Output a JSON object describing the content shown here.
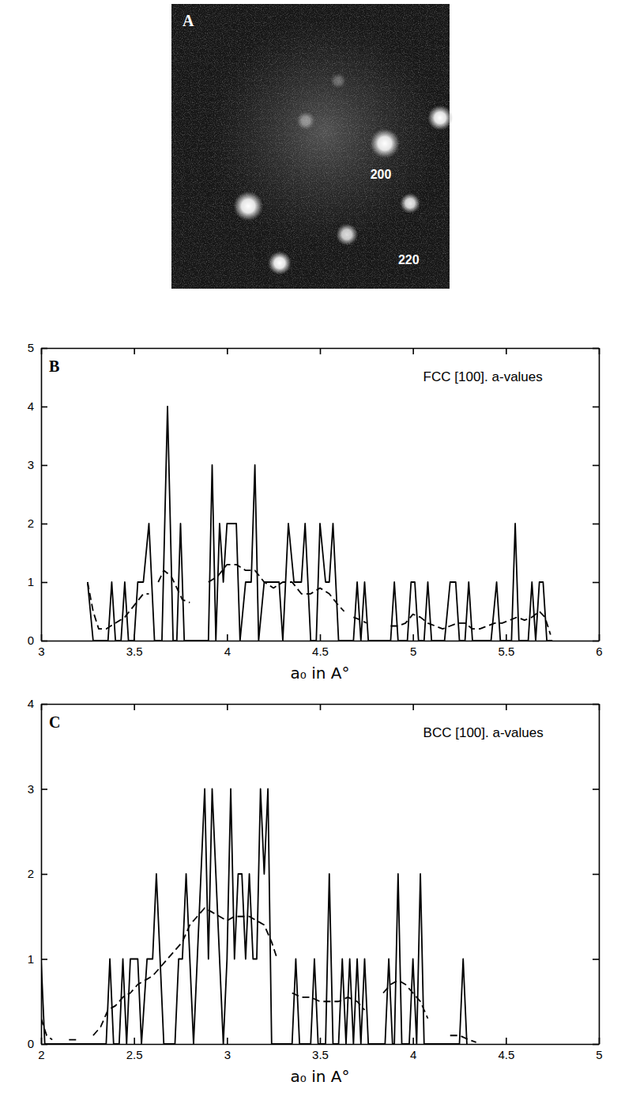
{
  "chart_data": [
    {
      "type": "image",
      "panel": "A",
      "annotations": [
        "200",
        "220"
      ]
    },
    {
      "type": "line",
      "panel": "B",
      "title": "FCC [100]. a-values",
      "x_label": "a₀ in A°",
      "xlim": [
        3,
        6
      ],
      "xticks": [
        3,
        3.5,
        4,
        4.5,
        5,
        5.5,
        6
      ],
      "ylim": [
        0,
        5
      ],
      "yticks": [
        0,
        1,
        2,
        3,
        4,
        5
      ],
      "series": [
        {
          "color": "#000000",
          "line_style": "solid",
          "x": [
            3.25,
            3.28,
            3.36,
            3.38,
            3.4,
            3.43,
            3.45,
            3.47,
            3.5,
            3.52,
            3.55,
            3.58,
            3.61,
            3.65,
            3.68,
            3.71,
            3.73,
            3.75,
            3.77,
            3.9,
            3.92,
            3.94,
            3.96,
            3.98,
            4.0,
            4.05,
            4.07,
            4.1,
            4.13,
            4.15,
            4.17,
            4.2,
            4.25,
            4.28,
            4.3,
            4.33,
            4.36,
            4.38,
            4.4,
            4.42,
            4.45,
            4.48,
            4.5,
            4.53,
            4.55,
            4.57,
            4.6,
            4.68,
            4.7,
            4.72,
            4.74,
            4.76,
            4.88,
            4.9,
            4.92,
            4.97,
            4.99,
            5.01,
            5.03,
            5.06,
            5.08,
            5.1,
            5.17,
            5.2,
            5.23,
            5.25,
            5.28,
            5.3,
            5.32,
            5.42,
            5.45,
            5.47,
            5.53,
            5.55,
            5.57,
            5.62,
            5.64,
            5.66,
            5.68,
            5.7,
            5.72,
            5.75
          ],
          "values": [
            1,
            0,
            0,
            1,
            0,
            0,
            1,
            0,
            0,
            1,
            1,
            2,
            0,
            0,
            4,
            0,
            0,
            2,
            0,
            0,
            3,
            0,
            2,
            1,
            2,
            2,
            0,
            1,
            1,
            3,
            0,
            1,
            1,
            1,
            0,
            2,
            1,
            1,
            1,
            2,
            0,
            0,
            2,
            1,
            1,
            2,
            0,
            0,
            1,
            0,
            1,
            0,
            0,
            1,
            0,
            0,
            1,
            1,
            0,
            0,
            1,
            0,
            0,
            1,
            1,
            0,
            0,
            1,
            0,
            0,
            1,
            0,
            0,
            2,
            0,
            0,
            1,
            0,
            1,
            1,
            0,
            0
          ]
        },
        {
          "color": "#000000",
          "line_style": "dashed",
          "x": [
            3.25,
            3.28,
            3.31,
            3.35,
            3.4,
            3.45,
            3.5,
            3.55,
            3.58,
            3.6,
            3.63,
            3.66,
            3.7,
            3.73,
            3.76,
            3.8,
            3.85,
            3.9,
            3.95,
            4.0,
            4.05,
            4.1,
            4.15,
            4.2,
            4.25,
            4.3,
            4.35,
            4.4,
            4.45,
            4.5,
            4.55,
            4.6,
            4.63,
            4.66,
            4.68,
            4.72,
            4.75,
            4.82,
            4.88,
            4.92,
            4.96,
            5.0,
            5.04,
            5.08,
            5.12,
            5.16,
            5.2,
            5.24,
            5.28,
            5.32,
            5.36,
            5.4,
            5.44,
            5.48,
            5.52,
            5.56,
            5.6,
            5.64,
            5.68,
            5.71,
            5.74
          ],
          "values": [
            1.0,
            0.5,
            0.2,
            0.2,
            0.3,
            0.4,
            0.6,
            0.8,
            0.8,
            null,
            1.0,
            1.2,
            1.1,
            0.9,
            0.7,
            0.65,
            null,
            1.0,
            1.1,
            1.3,
            1.3,
            1.2,
            1.2,
            1.0,
            0.9,
            1.0,
            1.0,
            0.8,
            0.8,
            0.9,
            0.8,
            0.6,
            0.5,
            null,
            0.4,
            0.35,
            0.3,
            null,
            0.25,
            0.25,
            0.3,
            0.45,
            0.4,
            0.3,
            0.25,
            0.2,
            0.25,
            0.3,
            0.3,
            0.2,
            0.2,
            0.25,
            0.3,
            0.3,
            0.35,
            0.4,
            0.35,
            0.4,
            0.5,
            0.4,
            0.1
          ]
        }
      ]
    },
    {
      "type": "line",
      "panel": "C",
      "title": "BCC [100]. a-values",
      "x_label": "a₀ in A°",
      "xlim": [
        2,
        5
      ],
      "xticks": [
        2,
        2.5,
        3,
        3.5,
        4,
        4.5,
        5
      ],
      "ylim": [
        0,
        4
      ],
      "yticks": [
        0,
        1,
        2,
        3,
        4
      ],
      "series": [
        {
          "color": "#000000",
          "line_style": "solid",
          "x": [
            2.0,
            2.02,
            2.35,
            2.37,
            2.39,
            2.42,
            2.44,
            2.46,
            2.48,
            2.52,
            2.54,
            2.57,
            2.6,
            2.62,
            2.64,
            2.66,
            2.72,
            2.74,
            2.76,
            2.78,
            2.8,
            2.82,
            2.84,
            2.86,
            2.88,
            2.9,
            2.92,
            2.94,
            2.96,
            2.98,
            3.0,
            3.02,
            3.04,
            3.06,
            3.08,
            3.1,
            3.12,
            3.14,
            3.16,
            3.18,
            3.2,
            3.22,
            3.24,
            3.35,
            3.37,
            3.39,
            3.45,
            3.47,
            3.49,
            3.53,
            3.55,
            3.57,
            3.6,
            3.62,
            3.64,
            3.66,
            3.68,
            3.7,
            3.72,
            3.74,
            3.76,
            3.85,
            3.87,
            3.89,
            3.9,
            3.92,
            3.94,
            3.98,
            4.0,
            4.02,
            4.04,
            4.06,
            4.25,
            4.27,
            4.29
          ],
          "values": [
            1,
            0,
            0,
            1,
            0,
            0,
            1,
            0,
            1,
            1,
            0,
            1,
            1,
            2,
            1,
            0,
            0,
            1,
            1,
            2,
            1,
            0,
            1,
            2,
            3,
            1,
            3,
            2,
            1,
            0,
            1,
            3,
            1,
            2,
            2,
            1,
            2,
            1,
            1,
            3,
            2,
            3,
            0,
            0,
            1,
            0,
            0,
            1,
            0,
            0,
            2,
            0,
            0,
            1,
            0,
            1,
            0,
            1,
            0,
            1,
            0,
            0,
            1,
            0,
            0,
            2,
            0,
            0,
            1,
            0,
            2,
            0,
            0,
            1,
            0
          ]
        },
        {
          "color": "#000000",
          "line_style": "dashed",
          "x": [
            2.0,
            2.03,
            2.06,
            2.1,
            2.15,
            2.2,
            2.24,
            2.28,
            2.32,
            2.36,
            2.4,
            2.44,
            2.48,
            2.52,
            2.56,
            2.6,
            2.64,
            2.68,
            2.72,
            2.76,
            2.8,
            2.84,
            2.88,
            2.92,
            2.96,
            3.0,
            3.04,
            3.08,
            3.12,
            3.16,
            3.2,
            3.24,
            3.27,
            3.31,
            3.35,
            3.4,
            3.45,
            3.5,
            3.55,
            3.6,
            3.65,
            3.7,
            3.74,
            3.79,
            3.84,
            3.88,
            3.92,
            3.96,
            4.0,
            4.04,
            4.08,
            4.14,
            4.2,
            4.25,
            4.3,
            4.34
          ],
          "values": [
            0.3,
            0.1,
            0.05,
            null,
            0.05,
            0.05,
            null,
            0.1,
            0.2,
            0.4,
            0.45,
            0.55,
            0.6,
            0.7,
            0.75,
            0.8,
            0.9,
            1.0,
            1.1,
            1.2,
            1.4,
            1.5,
            1.6,
            1.55,
            1.5,
            1.45,
            1.5,
            1.5,
            1.5,
            1.45,
            1.4,
            1.2,
            1.0,
            null,
            0.6,
            0.55,
            0.55,
            0.5,
            0.5,
            0.5,
            0.55,
            0.5,
            0.4,
            null,
            0.6,
            0.7,
            0.75,
            0.7,
            0.6,
            0.5,
            0.3,
            null,
            0.1,
            0.1,
            0.05,
            0.02
          ]
        }
      ]
    }
  ]
}
